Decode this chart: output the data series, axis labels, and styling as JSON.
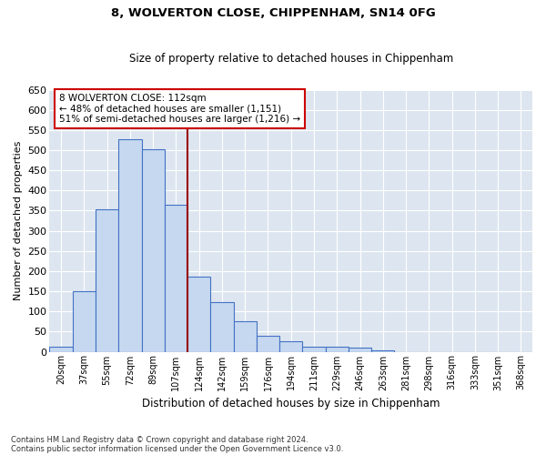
{
  "title1": "8, WOLVERTON CLOSE, CHIPPENHAM, SN14 0FG",
  "title2": "Size of property relative to detached houses in Chippenham",
  "xlabel": "Distribution of detached houses by size in Chippenham",
  "ylabel": "Number of detached properties",
  "footnote1": "Contains HM Land Registry data © Crown copyright and database right 2024.",
  "footnote2": "Contains public sector information licensed under the Open Government Licence v3.0.",
  "categories": [
    "20sqm",
    "37sqm",
    "55sqm",
    "72sqm",
    "89sqm",
    "107sqm",
    "124sqm",
    "142sqm",
    "159sqm",
    "176sqm",
    "194sqm",
    "211sqm",
    "229sqm",
    "246sqm",
    "263sqm",
    "281sqm",
    "298sqm",
    "316sqm",
    "333sqm",
    "351sqm",
    "368sqm"
  ],
  "values": [
    12,
    150,
    353,
    528,
    502,
    365,
    187,
    122,
    75,
    39,
    27,
    12,
    12,
    10,
    3,
    0,
    0,
    0,
    0,
    0,
    0
  ],
  "bar_color": "#c5d8f0",
  "bar_edge_color": "#4472c4",
  "vline_x": 3.5,
  "vline_color": "#990000",
  "annotation_text": "8 WOLVERTON CLOSE: 112sqm\n← 48% of detached houses are smaller (1,151)\n51% of semi-detached houses are larger (1,216) →",
  "annotation_box_color": "#ffffff",
  "annotation_box_edge_color": "#cc0000",
  "ylim": [
    0,
    650
  ],
  "yticks": [
    0,
    50,
    100,
    150,
    200,
    250,
    300,
    350,
    400,
    450,
    500,
    550,
    600,
    650
  ],
  "background_color": "#dde6f0",
  "grid_color": "#ffffff"
}
